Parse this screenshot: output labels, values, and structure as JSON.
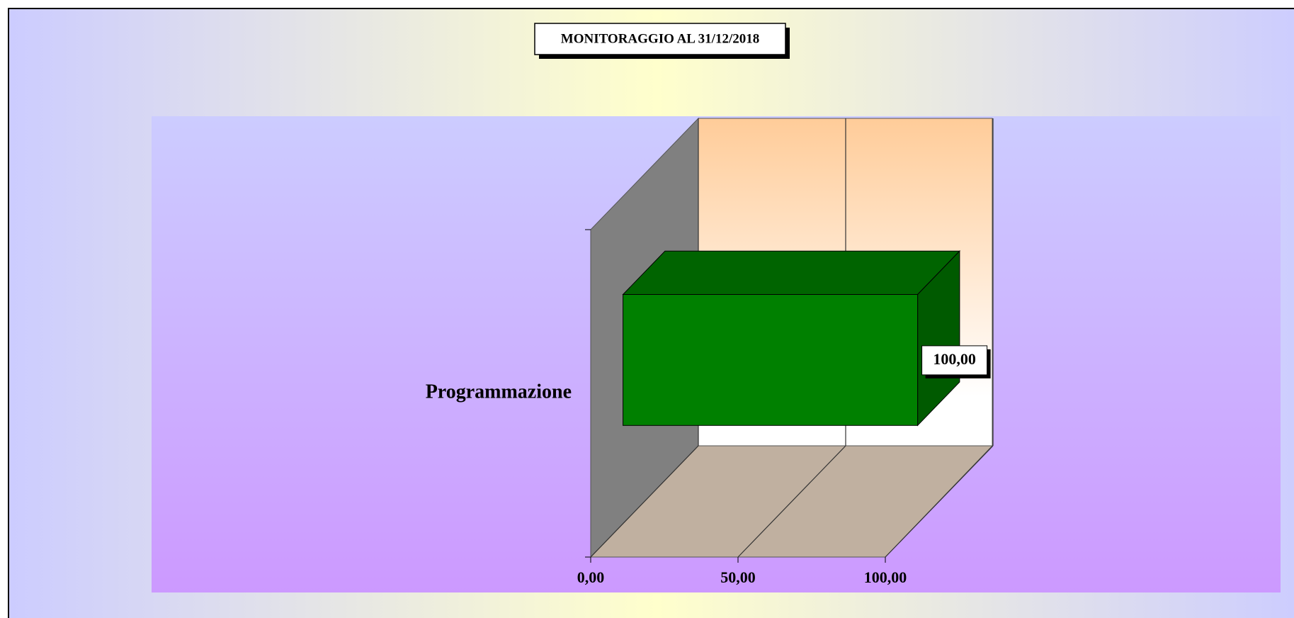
{
  "chart_data": {
    "type": "bar3d_horizontal",
    "title": "MONITORAGGIO AL 31/12/2018",
    "categories": [
      "Programmazione"
    ],
    "values": [
      100
    ],
    "value_labels": [
      "100,00"
    ],
    "color": "#008000",
    "xlim": [
      0,
      100
    ],
    "xticks": [
      {
        "value": 0,
        "label": "0,00"
      },
      {
        "value": 50,
        "label": "50,00"
      },
      {
        "value": 100,
        "label": "100,00"
      }
    ],
    "grid": true
  }
}
